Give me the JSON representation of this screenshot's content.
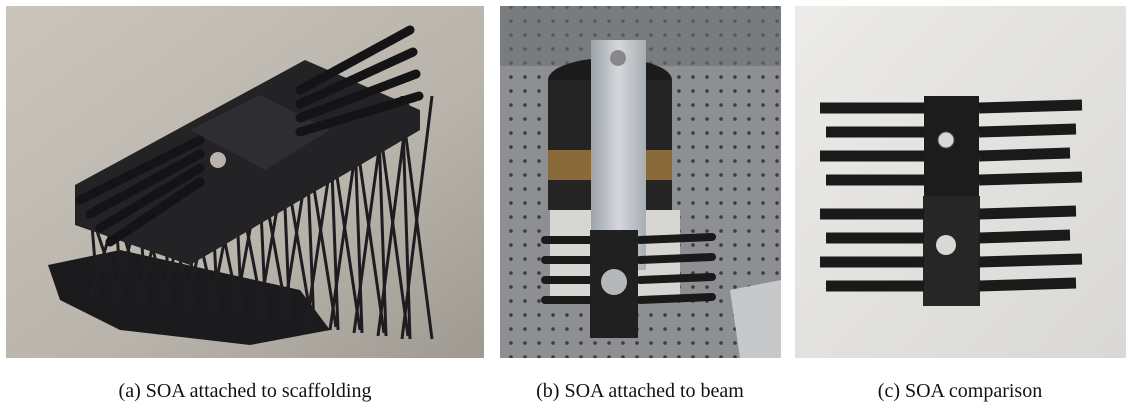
{
  "figure": {
    "panels": [
      {
        "caption": "(a) SOA attached to scaffolding"
      },
      {
        "caption": "(b) SOA attached to beam"
      },
      {
        "caption": "(c) SOA comparison"
      }
    ]
  }
}
